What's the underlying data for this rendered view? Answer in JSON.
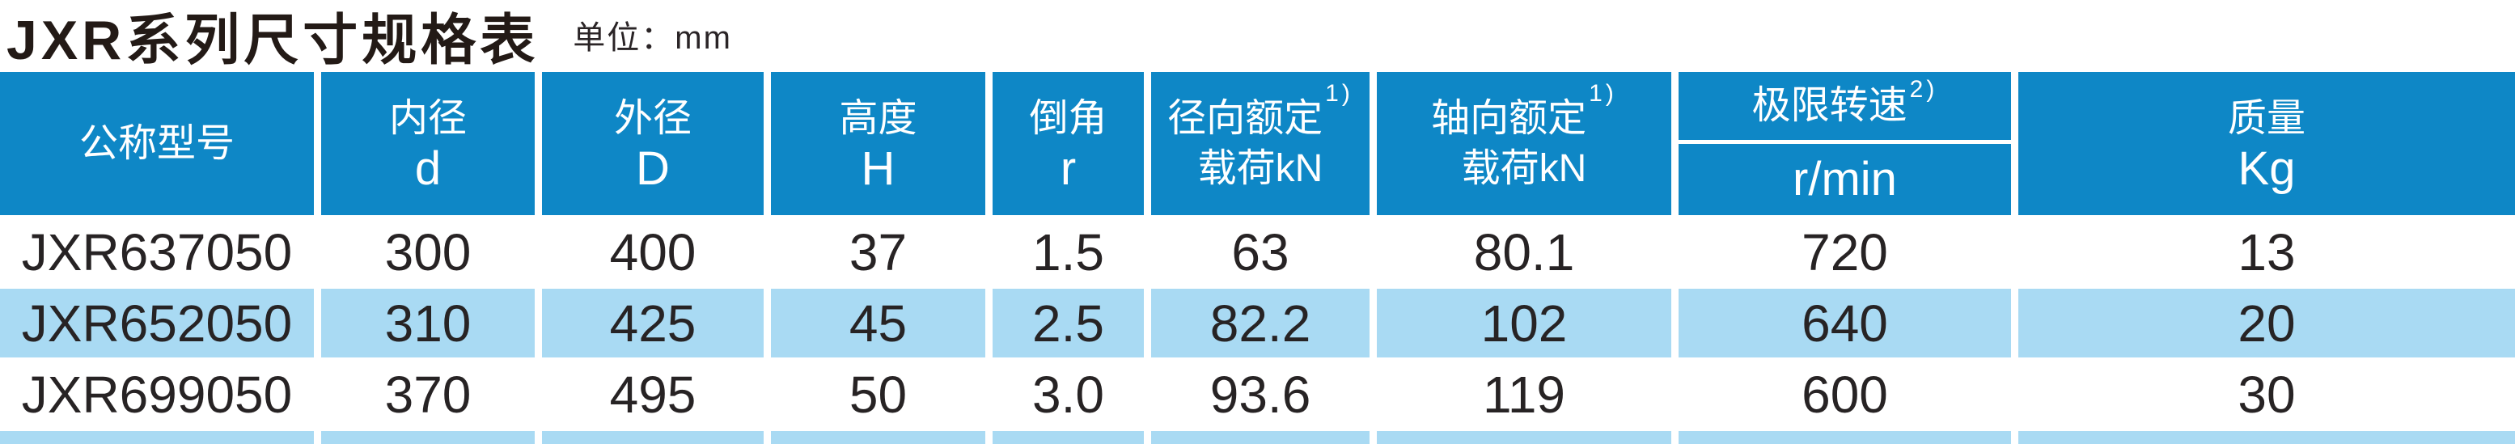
{
  "title": {
    "text": "JXR系列尺寸规格表",
    "unit": "单位：mm"
  },
  "colors": {
    "header_bg": "#0e87c6",
    "row_alt_bg": "#a9daf3",
    "body_text": "#272324",
    "title_text": "#231a16"
  },
  "table": {
    "columns": [
      {
        "id": "model",
        "line1": "公称型号",
        "line2": ""
      },
      {
        "id": "bore",
        "line1": "内径",
        "line2": "d"
      },
      {
        "id": "od",
        "line1": "外径",
        "line2": "D"
      },
      {
        "id": "height",
        "line1": "高度",
        "line2": "H"
      },
      {
        "id": "chamfer",
        "line1": "倒角",
        "line2": "r"
      },
      {
        "id": "radial",
        "line1": "径向额定",
        "sup": "1)",
        "line2": "载荷kN"
      },
      {
        "id": "axial",
        "line1": "轴向额定",
        "sup": "1)",
        "line2": "载荷kN"
      },
      {
        "id": "speed",
        "line1": "极限转速",
        "sup": "2)",
        "line2": "r/min"
      },
      {
        "id": "mass",
        "line1": "质量",
        "line2": "Kg"
      }
    ],
    "rows": [
      [
        "JXR637050",
        "300",
        "400",
        "37",
        "1.5",
        "63",
        "80.1",
        "720",
        "13"
      ],
      [
        "JXR652050",
        "310",
        "425",
        "45",
        "2.5",
        "82.2",
        "102",
        "640",
        "20"
      ],
      [
        "JXR699050",
        "370",
        "495",
        "50",
        "3.0",
        "93.6",
        "119",
        "600",
        "30"
      ]
    ]
  }
}
